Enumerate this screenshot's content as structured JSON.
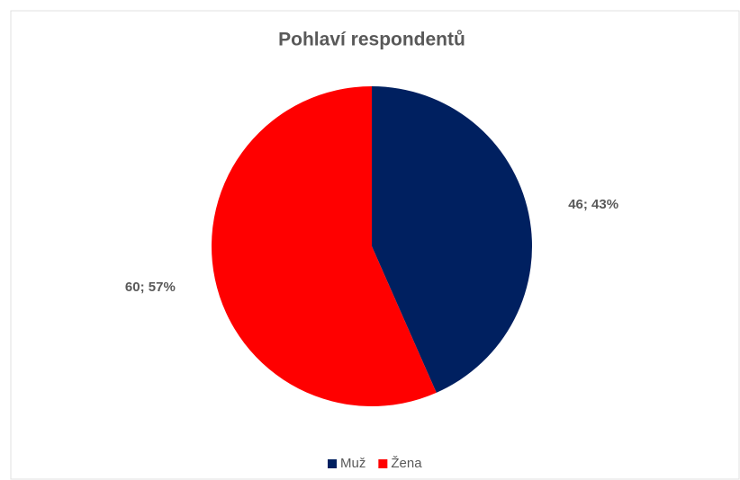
{
  "chart_data": {
    "type": "pie",
    "title": "Pohlaví respondentů",
    "categories": [
      "Muž",
      "Žena"
    ],
    "values": [
      46,
      60
    ],
    "value_labels": [
      "46; 43%",
      "60; 57%"
    ],
    "colors": [
      "#002060",
      "#ff0000"
    ],
    "legend": "bottom"
  }
}
